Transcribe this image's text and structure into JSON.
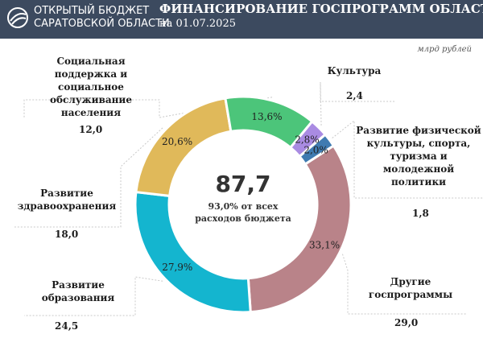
{
  "header": {
    "org_line1": "ОТКРЫТЫЙ БЮДЖЕТ",
    "org_line2": "САРАТОВСКОЙ ОБЛАСТИ",
    "title": "ФИНАНСИРОВАНИЕ ГОСПРОГРАММ ОБЛАСТИ",
    "subtitle": "на 01.07.2025"
  },
  "unit_label": "млрд рублей",
  "center": {
    "total": "87,7",
    "line1": "93,0% от всех",
    "line2": "расходов бюджета"
  },
  "colors": {
    "header_bg": "#3c4a5f",
    "other": "#b98389",
    "education": "#14b5cf",
    "health": "#e0b95a",
    "social": "#4cc57a",
    "culture": "#a98be2",
    "sport": "#3f7bb1"
  },
  "chart_data": {
    "type": "donut",
    "title": "ФИНАНСИРОВАНИЕ ГОСПРОГРАММ ОБЛАСТИ",
    "unit": "млрд рублей",
    "total": 87.7,
    "slices": [
      {
        "label": "Другие госпрограммы",
        "value": 29.0,
        "percent": "33,1%",
        "value_text": "29,0",
        "color": "#b98389"
      },
      {
        "label": "Развитие образования",
        "value": 24.5,
        "percent": "27,9%",
        "value_text": "24,5",
        "color": "#14b5cf"
      },
      {
        "label": "Развитие здравоохранения",
        "value": 18.0,
        "percent": "20,6%",
        "value_text": "18,0",
        "color": "#e0b95a"
      },
      {
        "label": "Социальная поддержка и социальное обслуживание населения",
        "value": 12.0,
        "percent": "13,6%",
        "value_text": "12,0",
        "color": "#4cc57a"
      },
      {
        "label": "Культура",
        "value": 2.4,
        "percent": "2,8%",
        "value_text": "2,4",
        "color": "#a98be2"
      },
      {
        "label": "Развитие физической культуры, спорта, туризма и молодежной политики",
        "value": 1.8,
        "percent": "2,0%",
        "value_text": "1,8",
        "color": "#3f7bb1"
      }
    ]
  }
}
